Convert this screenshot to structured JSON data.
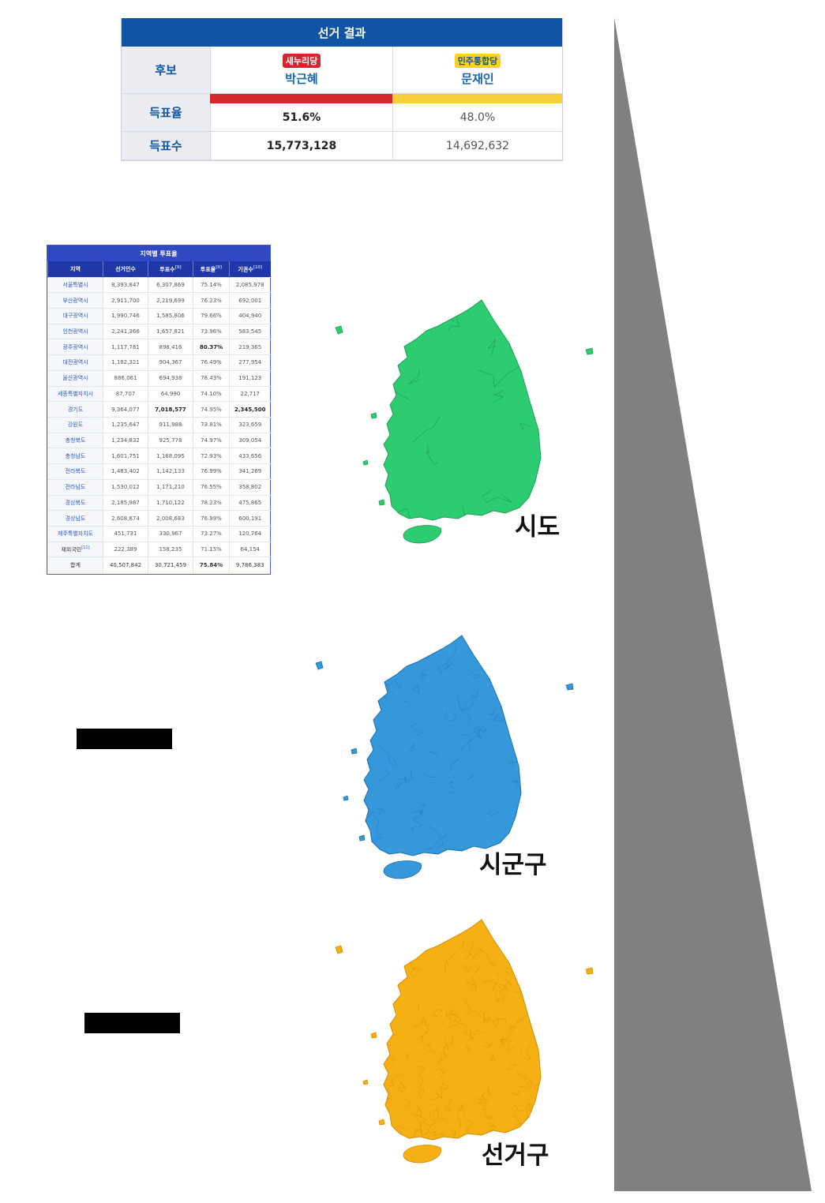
{
  "result_table": {
    "title": "선거 결과",
    "row_candidate": "후보",
    "row_rate": "득표율",
    "row_votes": "득표수",
    "candidates": [
      {
        "party": "새누리당",
        "name": "박근혜",
        "rate": "51.6%",
        "votes": "15,773,128",
        "color": "#d3262e",
        "share": 0.516
      },
      {
        "party": "민주통합당",
        "name": "문재인",
        "rate": "48.0%",
        "votes": "14,692,632",
        "color": "#f7d237",
        "share": 0.48
      }
    ]
  },
  "turnout_table": {
    "title": "지역별 투표율",
    "headers": [
      "지역",
      "선거인수",
      "투표수",
      "투표율",
      "기권수"
    ],
    "header_notes": [
      "",
      "",
      "[9]",
      "[9]",
      "[10]"
    ],
    "rows": [
      [
        "서울특별시",
        "8,393,847",
        "6,307,869",
        "75.14%",
        "2,085,978"
      ],
      [
        "부산광역시",
        "2,911,700",
        "2,219,699",
        "76.23%",
        "692,001"
      ],
      [
        "대구광역시",
        "1,990,746",
        "1,585,806",
        "79.66%",
        "404,940"
      ],
      [
        "인천광역시",
        "2,241,366",
        "1,657,821",
        "73.96%",
        "583,545"
      ],
      [
        "광주광역시",
        "1,117,781",
        "898,416",
        "80.37%",
        "219,365"
      ],
      [
        "대전광역시",
        "1,182,321",
        "904,367",
        "76.49%",
        "277,954"
      ],
      [
        "울산광역시",
        "886,061",
        "694,938",
        "78.43%",
        "191,123"
      ],
      [
        "세종특별자치시",
        "87,707",
        "64,990",
        "74.10%",
        "22,717"
      ],
      [
        "경기도",
        "9,364,077",
        "7,018,577",
        "74.95%",
        "2,345,500"
      ],
      [
        "강원도",
        "1,235,647",
        "911,988",
        "73.81%",
        "323,659"
      ],
      [
        "충청북도",
        "1,234,832",
        "925,778",
        "74.97%",
        "309,054"
      ],
      [
        "충청남도",
        "1,601,751",
        "1,168,095",
        "72.93%",
        "433,656"
      ],
      [
        "전라북도",
        "1,483,402",
        "1,142,133",
        "76.99%",
        "341,269"
      ],
      [
        "전라남도",
        "1,530,012",
        "1,171,210",
        "76.55%",
        "358,802"
      ],
      [
        "경상북도",
        "2,185,987",
        "1,710,122",
        "78.23%",
        "475,865"
      ],
      [
        "경상남도",
        "2,608,874",
        "2,008,683",
        "76.99%",
        "600,191"
      ],
      [
        "제주특별자치도",
        "451,731",
        "330,967",
        "73.27%",
        "120,764"
      ],
      [
        "재외국민",
        "222,389",
        "158,235",
        "71.15%",
        "64,154"
      ],
      [
        "합계",
        "40,507,842",
        "30,721,459",
        "75.84%",
        "9,786,383"
      ]
    ],
    "overseas_note": "[11]"
  },
  "maps": [
    {
      "label": "시도",
      "color": "#2ecc71",
      "stroke": "#1e9e55"
    },
    {
      "label": "시군구",
      "color": "#3498db",
      "stroke": "#1f6fad"
    },
    {
      "label": "선거구",
      "color": "#f5b014",
      "stroke": "#d08d00"
    }
  ],
  "wedge_color": "#808080"
}
